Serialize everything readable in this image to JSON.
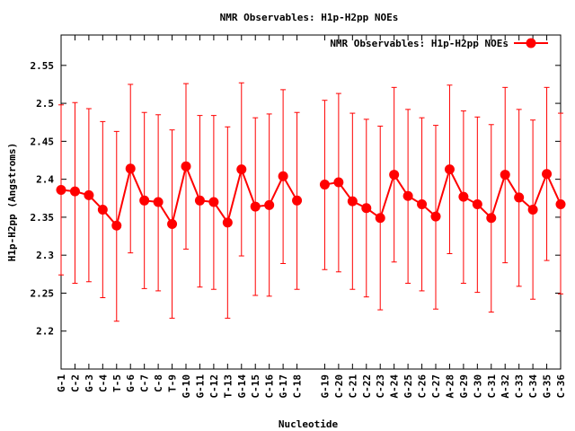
{
  "chart_data": {
    "type": "line",
    "title": "NMR Observables: H1p-H2pp NOEs",
    "xlabel": "Nucleotide",
    "ylabel": "H1p-H2pp (Angstroms)",
    "ylim": [
      2.15,
      2.59
    ],
    "yticks": [
      2.2,
      2.25,
      2.3,
      2.35,
      2.4,
      2.45,
      2.5,
      2.55
    ],
    "ytick_labels": [
      "2.2",
      "2.25",
      "2.3",
      "2.35",
      "2.4",
      "2.45",
      "2.5",
      "2.55"
    ],
    "grid": false,
    "legend_position": "top-right",
    "categories": [
      "G-1",
      "C-2",
      "G-3",
      "C-4",
      "T-5",
      "G-6",
      "C-7",
      "C-8",
      "T-9",
      "G-10",
      "G-11",
      "C-12",
      "T-13",
      "G-14",
      "C-15",
      "C-16",
      "G-17",
      "C-18",
      "G-19",
      "C-20",
      "C-21",
      "C-22",
      "C-23",
      "A-24",
      "G-25",
      "C-26",
      "C-27",
      "A-28",
      "G-29",
      "C-30",
      "C-31",
      "A-32",
      "C-33",
      "C-34",
      "G-35",
      "C-36"
    ],
    "x_index": [
      1,
      2,
      3,
      4,
      5,
      6,
      7,
      8,
      9,
      10,
      11,
      12,
      13,
      14,
      15,
      16,
      17,
      18,
      20,
      21,
      22,
      23,
      24,
      25,
      26,
      27,
      28,
      29,
      30,
      31,
      32,
      33,
      34,
      35,
      36,
      37
    ],
    "segments": [
      [
        0,
        17
      ],
      [
        18,
        35
      ]
    ],
    "series": [
      {
        "name": "NMR Observables: H1p-H2pp NOEs",
        "color": "#ff0000",
        "values": [
          2.386,
          2.384,
          2.379,
          2.36,
          2.339,
          2.414,
          2.372,
          2.37,
          2.341,
          2.417,
          2.372,
          2.37,
          2.343,
          2.413,
          2.364,
          2.366,
          2.404,
          2.372,
          2.393,
          2.396,
          2.371,
          2.362,
          2.349,
          2.406,
          2.378,
          2.367,
          2.351,
          2.413,
          2.377,
          2.367,
          2.349,
          2.406,
          2.376,
          2.36,
          2.407,
          2.367
        ],
        "err_low": [
          2.274,
          2.263,
          2.265,
          2.244,
          2.213,
          2.303,
          2.256,
          2.253,
          2.217,
          2.308,
          2.258,
          2.255,
          2.217,
          2.299,
          2.247,
          2.246,
          2.289,
          2.255,
          2.281,
          2.278,
          2.255,
          2.245,
          2.228,
          2.291,
          2.263,
          2.253,
          2.229,
          2.302,
          2.263,
          2.251,
          2.225,
          2.29,
          2.259,
          2.242,
          2.293,
          2.249
        ],
        "err_high": [
          2.498,
          2.501,
          2.493,
          2.476,
          2.463,
          2.525,
          2.488,
          2.485,
          2.465,
          2.526,
          2.484,
          2.484,
          2.469,
          2.527,
          2.481,
          2.486,
          2.518,
          2.488,
          2.504,
          2.513,
          2.487,
          2.479,
          2.47,
          2.521,
          2.492,
          2.481,
          2.471,
          2.524,
          2.49,
          2.482,
          2.472,
          2.521,
          2.492,
          2.478,
          2.521,
          2.487
        ]
      }
    ]
  }
}
